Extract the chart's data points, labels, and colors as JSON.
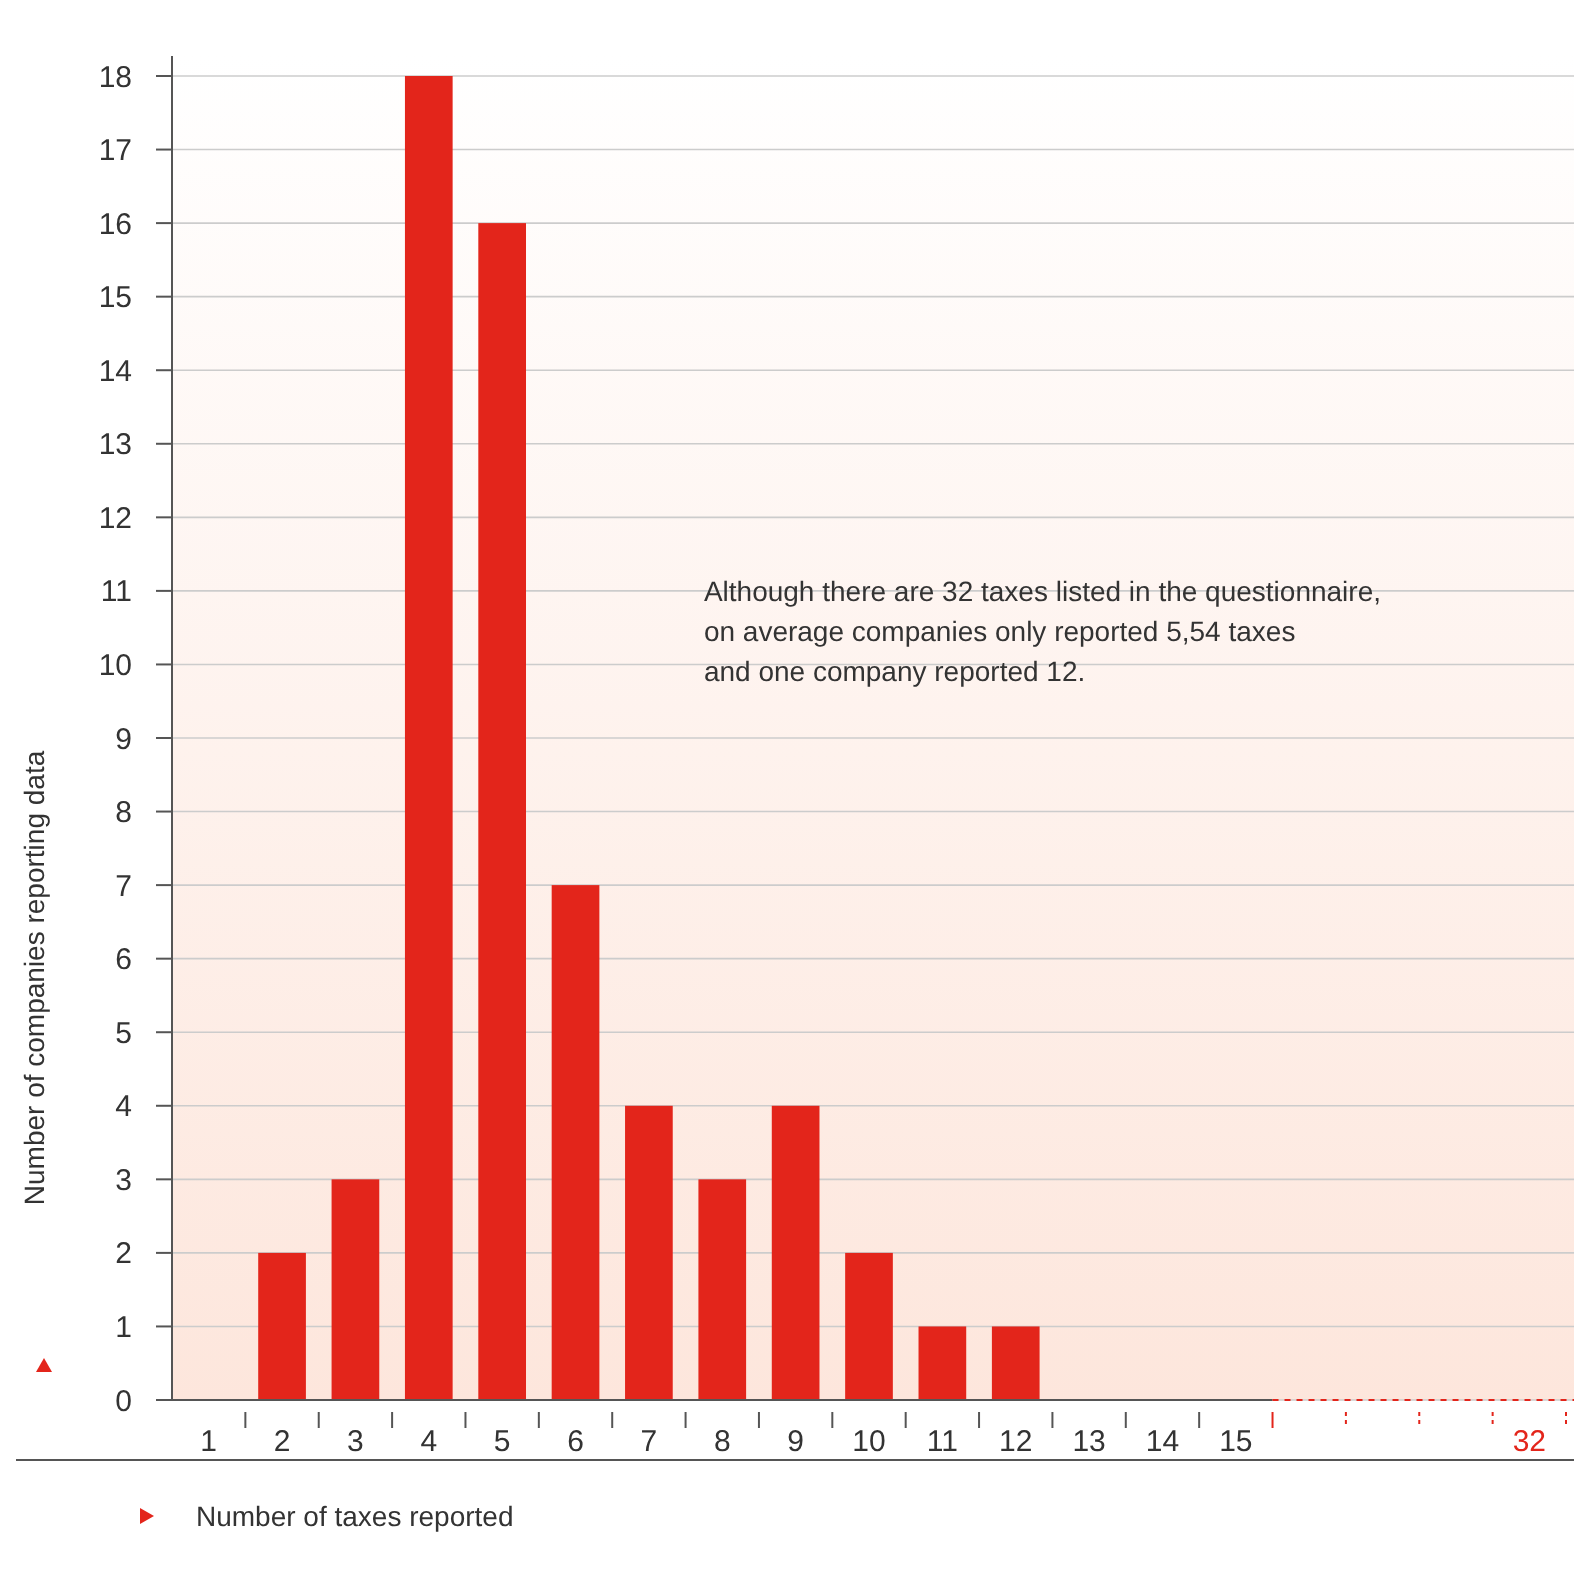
{
  "chart_data": {
    "type": "bar",
    "xlabel": "Number of taxes reported",
    "ylabel": "Number of companies reporting data",
    "categories": [
      "1",
      "2",
      "3",
      "4",
      "5",
      "6",
      "7",
      "8",
      "9",
      "10",
      "11",
      "12",
      "13",
      "14",
      "15",
      null,
      null,
      null,
      "32"
    ],
    "values": [
      0,
      2,
      3,
      18,
      16,
      7,
      4,
      3,
      4,
      2,
      1,
      1,
      0,
      0,
      0,
      null,
      null,
      null,
      0
    ],
    "color": "#e3251b",
    "ylim": [
      0,
      18
    ],
    "yticks": [
      0,
      1,
      2,
      3,
      4,
      5,
      6,
      7,
      8,
      9,
      10,
      11,
      12,
      13,
      14,
      15,
      16,
      17,
      18
    ],
    "grid": "y",
    "annotations": [
      "Although there are 32 taxes listed in the questionnaire,",
      "on average companies only reported 5,54 taxes",
      "and one company reported 12."
    ]
  }
}
